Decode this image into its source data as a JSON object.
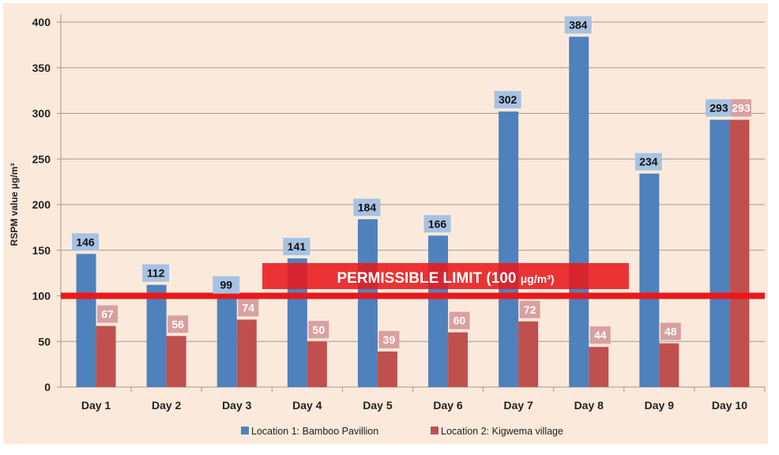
{
  "chart_data": {
    "type": "bar",
    "title": "",
    "xlabel": "",
    "ylabel": "RSPM value  μg/m³",
    "ylim": [
      0,
      400
    ],
    "yticks": [
      0,
      50,
      100,
      150,
      200,
      250,
      300,
      350,
      400
    ],
    "grid": true,
    "categories": [
      "Day 1",
      "Day 2",
      "Day 3",
      "Day 4",
      "Day 5",
      "Day 6",
      "Day 7",
      "Day 8",
      "Day 9",
      "Day 10"
    ],
    "series": [
      {
        "name": "Location 1: Bamboo  Pavillion",
        "color": "#4f81bd",
        "label_bg": "#a7c2e2",
        "values": [
          146,
          112,
          99,
          141,
          184,
          166,
          302,
          384,
          234,
          293
        ]
      },
      {
        "name": "Location 2: Kigwema village",
        "color": "#c0504d",
        "label_bg": "#d9a0a0",
        "values": [
          67,
          56,
          74,
          50,
          39,
          60,
          72,
          44,
          48,
          293
        ]
      }
    ],
    "reference_line": {
      "value": 100,
      "label": "PERMISSIBLE LIMIT (100 ",
      "unit": "μg/m³)",
      "color": "#e8191c"
    },
    "legend_position": "bottom",
    "background": "#fbeadb"
  }
}
